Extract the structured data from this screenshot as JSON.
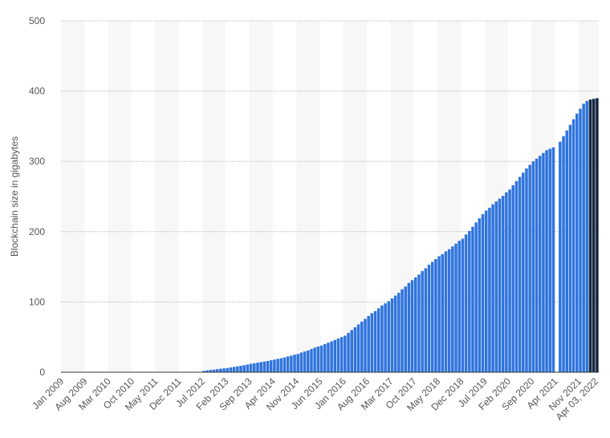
{
  "chart_data": {
    "type": "bar",
    "y_label": "Blockchain size in gigabytes",
    "ylim": [
      0,
      500
    ],
    "yticks": [
      0,
      100,
      200,
      300,
      400,
      500
    ],
    "grid": true,
    "categories": [
      "Jan 2009",
      null,
      null,
      null,
      null,
      null,
      null,
      "Aug 2009",
      null,
      null,
      null,
      null,
      null,
      null,
      "Mar 2010",
      null,
      null,
      null,
      null,
      null,
      null,
      "Oct 2010",
      null,
      null,
      null,
      null,
      null,
      null,
      "May 2011",
      null,
      null,
      null,
      null,
      null,
      null,
      "Dec 2011",
      null,
      null,
      null,
      null,
      null,
      null,
      "Jul 2012",
      null,
      null,
      null,
      null,
      null,
      null,
      "Feb 2013",
      null,
      null,
      null,
      null,
      null,
      null,
      "Sep 2013",
      null,
      null,
      null,
      null,
      null,
      null,
      "Apr 2014",
      null,
      null,
      null,
      null,
      null,
      null,
      "Nov 2014",
      null,
      null,
      null,
      null,
      null,
      null,
      "Jun 2015",
      null,
      null,
      null,
      null,
      null,
      null,
      "Jan 2016",
      null,
      null,
      null,
      null,
      null,
      null,
      "Aug 2016",
      null,
      null,
      null,
      null,
      null,
      null,
      "Mar 2017",
      null,
      null,
      null,
      null,
      null,
      null,
      "Oct 2017",
      null,
      null,
      null,
      null,
      null,
      null,
      "May 2018",
      null,
      null,
      null,
      null,
      null,
      null,
      "Dec 2018",
      null,
      null,
      null,
      null,
      null,
      null,
      "Jul 2019",
      null,
      null,
      null,
      null,
      null,
      null,
      "Feb 2020",
      null,
      null,
      null,
      null,
      null,
      null,
      "Sep 2020",
      null,
      null,
      null,
      null,
      null,
      null,
      "Apr 2021",
      null,
      null,
      null,
      null,
      null,
      null,
      "Nov 2021",
      null,
      null,
      null,
      null,
      "Apr 03, 2022"
    ],
    "values": [
      0,
      0,
      0,
      0,
      0,
      0,
      0,
      0,
      0,
      0,
      0,
      0,
      0,
      0,
      0,
      0,
      0,
      0,
      0,
      0,
      0,
      0,
      0,
      0,
      0,
      0,
      0,
      0,
      0,
      0,
      0,
      0,
      0,
      0,
      0,
      0,
      0,
      0,
      0,
      0,
      0,
      0,
      2,
      2.6,
      3.2,
      3.8,
      4.4,
      5,
      5.5,
      6,
      6.8,
      7.6,
      8.4,
      9.2,
      10,
      11,
      12,
      12.8,
      13.6,
      14.4,
      15.2,
      16,
      17,
      18,
      19,
      20,
      21,
      22.5,
      23.5,
      25,
      26,
      28,
      29.5,
      31,
      33,
      35,
      36.5,
      38,
      40,
      42,
      44,
      46,
      48,
      50,
      52,
      56,
      60,
      64,
      68,
      72,
      76,
      80,
      84,
      87,
      91,
      95,
      98,
      101,
      105,
      109,
      113,
      118,
      122,
      127,
      131,
      135,
      139,
      144,
      148,
      153,
      157,
      161,
      165,
      168,
      172,
      175,
      179,
      183,
      187,
      190,
      196,
      201,
      207,
      213,
      219,
      225,
      230,
      234,
      239,
      243,
      247,
      251,
      256,
      260,
      266,
      272,
      278,
      284,
      290,
      295,
      300,
      304,
      308,
      312,
      316,
      318,
      320,
      null,
      328,
      336,
      344,
      352,
      360,
      368,
      375,
      382,
      386,
      388,
      389,
      390
    ],
    "colors": [
      "#2f74dd",
      "#2f74dd",
      "#2f74dd",
      "#2f74dd",
      "#2f74dd",
      "#2f74dd",
      "#2f74dd",
      "#2f74dd",
      "#2f74dd",
      "#2f74dd",
      "#2f74dd",
      "#2f74dd",
      "#2f74dd",
      "#2f74dd",
      "#2f74dd",
      "#2f74dd",
      "#2f74dd",
      "#2f74dd",
      "#2f74dd",
      "#2f74dd",
      "#2f74dd",
      "#2f74dd",
      "#2f74dd",
      "#2f74dd",
      "#2f74dd",
      "#2f74dd",
      "#2f74dd",
      "#2f74dd",
      "#2f74dd",
      "#2f74dd",
      "#2f74dd",
      "#2f74dd",
      "#2f74dd",
      "#2f74dd",
      "#2f74dd",
      "#2f74dd",
      "#2f74dd",
      "#2f74dd",
      "#2f74dd",
      "#2f74dd",
      "#2f74dd",
      "#2f74dd",
      "#2f74dd",
      "#2f74dd",
      "#2f74dd",
      "#2f74dd",
      "#2f74dd",
      "#2f74dd",
      "#2f74dd",
      "#2f74dd",
      "#2f74dd",
      "#2f74dd",
      "#2f74dd",
      "#2f74dd",
      "#2f74dd",
      "#2f74dd",
      "#2f74dd",
      "#2f74dd",
      "#2f74dd",
      "#2f74dd",
      "#2f74dd",
      "#2f74dd",
      "#2f74dd",
      "#2f74dd",
      "#2f74dd",
      "#2f74dd",
      "#2f74dd",
      "#2f74dd",
      "#2f74dd",
      "#2f74dd",
      "#2f74dd",
      "#2f74dd",
      "#2f74dd",
      "#2f74dd",
      "#2f74dd",
      "#2f74dd",
      "#2f74dd",
      "#2f74dd",
      "#2f74dd",
      "#2f74dd",
      "#2f74dd",
      "#2f74dd",
      "#2f74dd",
      "#2f74dd",
      "#2f74dd",
      "#2f74dd",
      "#2f74dd",
      "#2f74dd",
      "#2f74dd",
      "#2f74dd",
      "#2f74dd",
      "#2f74dd",
      "#2f74dd",
      "#2f74dd",
      "#2f74dd",
      "#2f74dd",
      "#2f74dd",
      "#2f74dd",
      "#2f74dd",
      "#2f74dd",
      "#2f74dd",
      "#2f74dd",
      "#2f74dd",
      "#2f74dd",
      "#2f74dd",
      "#2f74dd",
      "#2f74dd",
      "#2f74dd",
      "#2f74dd",
      "#2f74dd",
      "#2f74dd",
      "#2f74dd",
      "#2f74dd",
      "#2f74dd",
      "#2f74dd",
      "#2f74dd",
      "#2f74dd",
      "#2f74dd",
      "#2f74dd",
      "#2f74dd",
      "#2f74dd",
      "#2f74dd",
      "#2f74dd",
      "#2f74dd",
      "#2f74dd",
      "#2f74dd",
      "#2f74dd",
      "#2f74dd",
      "#2f74dd",
      "#2f74dd",
      "#2f74dd",
      "#2f74dd",
      "#2f74dd",
      "#2f74dd",
      "#2f74dd",
      "#2f74dd",
      "#2f74dd",
      "#2f74dd",
      "#2f74dd",
      "#2f74dd",
      "#2f74dd",
      "#2f74dd",
      "#2f74dd",
      "#2f74dd",
      "#2f74dd",
      "#2f74dd",
      "#2f74dd",
      "#2f74dd",
      "#2f74dd",
      "#2f74dd",
      "#2f74dd",
      "#2f74dd",
      "#2f74dd",
      "#2f74dd",
      "#2f74dd",
      "#2f74dd",
      "#2f74dd",
      "#14263f",
      "#14263f",
      "#14263f"
    ]
  }
}
